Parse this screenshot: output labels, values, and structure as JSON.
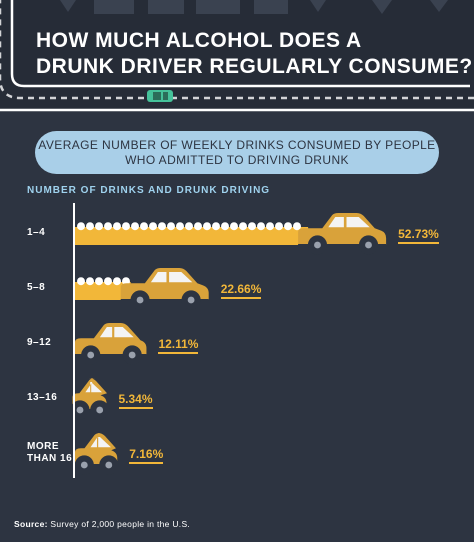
{
  "header": {
    "title_line1": "HOW MUCH ALCOHOL DOES A",
    "title_line2": "DRUNK DRIVER REGULARLY CONSUME?"
  },
  "subtitle": {
    "line1": "AVERAGE NUMBER OF WEEKLY DRINKS CONSUMED BY PEOPLE",
    "line2": "WHO ADMITTED TO DRIVING DRUNK"
  },
  "section_label": "NUMBER OF DRINKS AND DRUNK DRIVING",
  "source": {
    "label": "Source:",
    "text": "Survey of 2,000 people in the U.S."
  },
  "colors": {
    "background": "#2d3441",
    "bar_fill": "#f2b739",
    "car_body": "#d9a23a",
    "accent_blue": "#a9cfe8",
    "value_text": "#f2b739"
  },
  "chart_data": {
    "type": "bar",
    "orientation": "horizontal",
    "categories": [
      "1–4",
      "5–8",
      "9–12",
      "13–16",
      "MORE THAN 16"
    ],
    "category_lines": [
      [
        "1–4"
      ],
      [
        "5–8"
      ],
      [
        "9–12"
      ],
      [
        "13–16"
      ],
      [
        "MORE",
        "THAN 16"
      ]
    ],
    "values": [
      52.73,
      22.66,
      12.11,
      5.34,
      7.16
    ],
    "value_labels": [
      "52.73%",
      "22.66%",
      "12.11%",
      "5.34%",
      "7.16%"
    ],
    "ylabel": "NUMBER OF DRINKS AND DRUNK DRIVING",
    "xlim": [
      0,
      60
    ],
    "grid": false
  }
}
